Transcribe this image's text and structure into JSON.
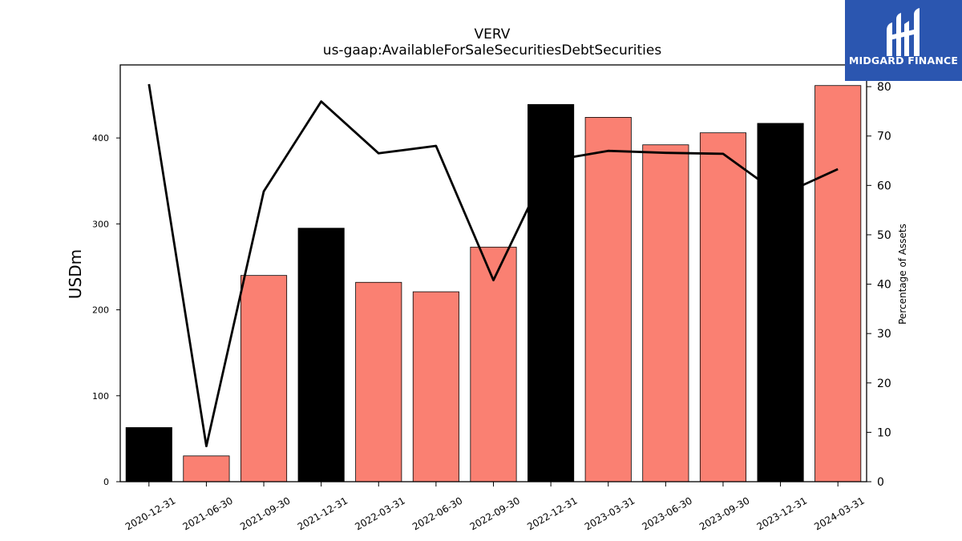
{
  "logo": {
    "text": "MIDGARD FINANCE",
    "background": "#2b56b0"
  },
  "chart_data": {
    "type": "bar",
    "title": "VERV",
    "subtitle": "us-gaap:AvailableForSaleSecuritiesDebtSecurities",
    "ylabel": "USDm",
    "y2label": "Percentage of Assets",
    "ylim": [
      0,
      485
    ],
    "y2lim": [
      0,
      84.4
    ],
    "yticks": [
      0,
      100,
      200,
      300,
      400
    ],
    "y2ticks": [
      0,
      10,
      20,
      30,
      40,
      50,
      60,
      70,
      80
    ],
    "categories": [
      "2020-12-31",
      "2021-06-30",
      "2021-09-30",
      "2021-12-31",
      "2022-03-31",
      "2022-06-30",
      "2022-09-30",
      "2022-12-31",
      "2023-03-31",
      "2023-06-30",
      "2023-09-30",
      "2023-12-31",
      "2024-03-31"
    ],
    "series": [
      {
        "type": "bar",
        "axis": "left",
        "values": [
          63,
          30,
          240,
          295,
          232,
          221,
          273,
          439,
          424,
          392,
          406,
          417,
          461
        ]
      },
      {
        "type": "line",
        "axis": "right",
        "values": [
          80.5,
          7.2,
          58.8,
          77.0,
          66.5,
          68.0,
          40.8,
          65.0,
          67.0,
          66.6,
          66.4,
          58.0,
          63.3
        ]
      }
    ],
    "bar_colors": {
      "annual": "#000000",
      "other": "#fa8072"
    },
    "annual_flags": [
      true,
      false,
      false,
      true,
      false,
      false,
      false,
      true,
      false,
      false,
      false,
      true,
      false
    ],
    "line_color": "#000000",
    "grid": false
  }
}
